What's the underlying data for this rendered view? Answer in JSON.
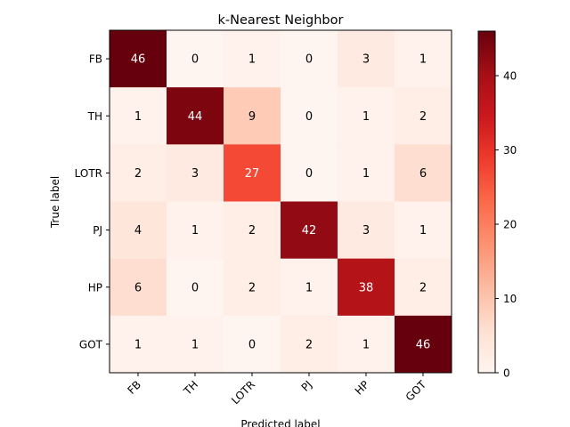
{
  "chart_data": {
    "type": "heatmap",
    "title": "k-Nearest Neighbor",
    "xlabel": "Predicted label",
    "ylabel": "True label",
    "x_categories": [
      "FB",
      "TH",
      "LOTR",
      "PJ",
      "HP",
      "GOT"
    ],
    "y_categories": [
      "FB",
      "TH",
      "LOTR",
      "PJ",
      "HP",
      "GOT"
    ],
    "matrix": [
      [
        46,
        0,
        1,
        0,
        3,
        1
      ],
      [
        1,
        44,
        9,
        0,
        1,
        2
      ],
      [
        2,
        3,
        27,
        0,
        1,
        6
      ],
      [
        4,
        1,
        2,
        42,
        3,
        1
      ],
      [
        6,
        0,
        2,
        1,
        38,
        2
      ],
      [
        1,
        1,
        0,
        2,
        1,
        46
      ]
    ],
    "colormap": "Reds",
    "vmin": 0,
    "vmax": 46,
    "colorbar_ticks": [
      0,
      10,
      20,
      30,
      40
    ],
    "x_tick_rotation_deg": 45
  }
}
